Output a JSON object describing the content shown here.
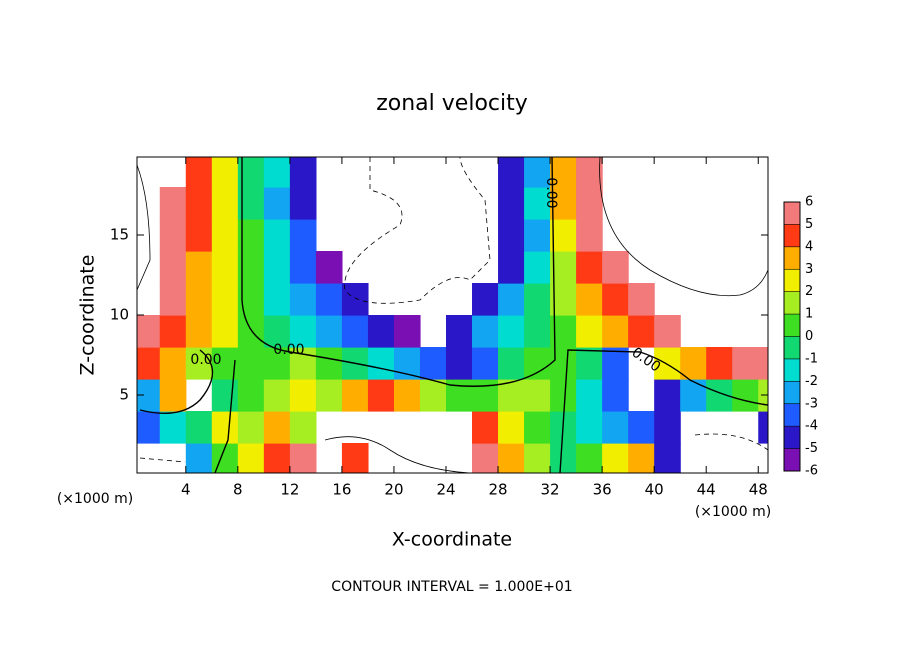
{
  "chart_data": {
    "type": "contourf",
    "title": "zonal velocity",
    "x_label": "X-coordinate",
    "y_label": "Z-coordinate",
    "x_unit": "(×1000 m)",
    "footer": "CONTOUR INTERVAL = 1.000E+01",
    "contour_labels": [
      "0.00",
      "0.00",
      "0.00",
      "0.00"
    ],
    "xlim": [
      0.25,
      48.75
    ],
    "ylim": [
      0.125,
      19.875
    ],
    "xticks": [
      4,
      8,
      12,
      16,
      20,
      24,
      28,
      32,
      36,
      40,
      44,
      48
    ],
    "yticks": [
      5,
      10,
      15
    ],
    "x": [
      1,
      3,
      5,
      7,
      9,
      11,
      13,
      15,
      17,
      19,
      21,
      23,
      25,
      27,
      29,
      31,
      33,
      35,
      37,
      39,
      41,
      43,
      45,
      47,
      49
    ],
    "y": [
      1,
      3,
      5,
      7,
      9,
      11,
      13,
      15,
      17,
      19
    ],
    "z": [
      [
        null,
        null,
        -3,
        0.5,
        2,
        4,
        5,
        null,
        4,
        null,
        null,
        null,
        null,
        5,
        3,
        1,
        -1,
        0,
        2,
        3,
        -5,
        null,
        null,
        null,
        null
      ],
      [
        -4,
        -2,
        -1,
        2,
        1,
        3,
        1,
        null,
        null,
        null,
        null,
        null,
        null,
        4,
        2,
        0.5,
        -0.5,
        -2,
        -3,
        -4,
        -5,
        null,
        null,
        null,
        -5
      ],
      [
        -3,
        3,
        null,
        -1,
        0,
        1,
        2,
        1,
        3,
        4,
        3,
        1,
        0.5,
        0.5,
        1,
        1.5,
        0.5,
        -2,
        -4,
        null,
        -5,
        -3,
        -1,
        0,
        1
      ],
      [
        4,
        3,
        1.5,
        0.5,
        0,
        0.5,
        1.5,
        0,
        -0.5,
        -1.5,
        -2.5,
        -3.5,
        -5,
        -4,
        -1,
        0,
        0.5,
        -1,
        -4,
        null,
        2,
        3,
        4,
        5,
        5
      ],
      [
        5,
        4,
        3,
        2,
        0,
        -0.5,
        -1.5,
        -2.5,
        -3.5,
        -4.5,
        -5.5,
        null,
        -5,
        -3,
        -2,
        -0.5,
        0.5,
        2,
        3,
        4,
        5,
        null,
        null,
        null,
        null
      ],
      [
        null,
        5,
        3,
        2,
        0,
        -1.5,
        -3,
        -4,
        -5,
        null,
        null,
        null,
        null,
        -5,
        -3,
        -1,
        1,
        3,
        4,
        5,
        null,
        null,
        null,
        null,
        null
      ],
      [
        null,
        5,
        3.5,
        2,
        0,
        -2,
        -3.5,
        -5.5,
        null,
        null,
        null,
        null,
        null,
        null,
        -5,
        -2,
        1,
        4,
        5,
        null,
        null,
        null,
        null,
        null,
        null
      ],
      [
        null,
        5,
        4,
        2,
        0,
        -2,
        -4,
        null,
        null,
        null,
        null,
        null,
        null,
        null,
        -5,
        -3,
        2,
        5,
        null,
        null,
        null,
        null,
        null,
        null,
        null
      ],
      [
        null,
        5,
        4,
        2,
        -0.5,
        -2.5,
        -5,
        null,
        null,
        null,
        null,
        null,
        null,
        null,
        -5,
        -2,
        3,
        5,
        null,
        null,
        null,
        null,
        null,
        null,
        null
      ],
      [
        null,
        null,
        4,
        2,
        -0.5,
        -2,
        -5,
        null,
        null,
        null,
        null,
        null,
        null,
        null,
        -5,
        -3,
        3,
        5,
        null,
        null,
        null,
        null,
        null,
        null,
        null
      ]
    ],
    "colorbar_ticks": [
      -6,
      -5,
      -4,
      -3,
      -2,
      -1,
      0,
      1,
      2,
      3,
      4,
      5,
      6
    ],
    "colors": [
      "#7a10b4",
      "#2a18c8",
      "#1f5cff",
      "#12a6f2",
      "#00dcd0",
      "#12d872",
      "#3ede22",
      "#a6ee22",
      "#f2ee00",
      "#ffae00",
      "#ff3a14",
      "#f27a7a"
    ]
  }
}
